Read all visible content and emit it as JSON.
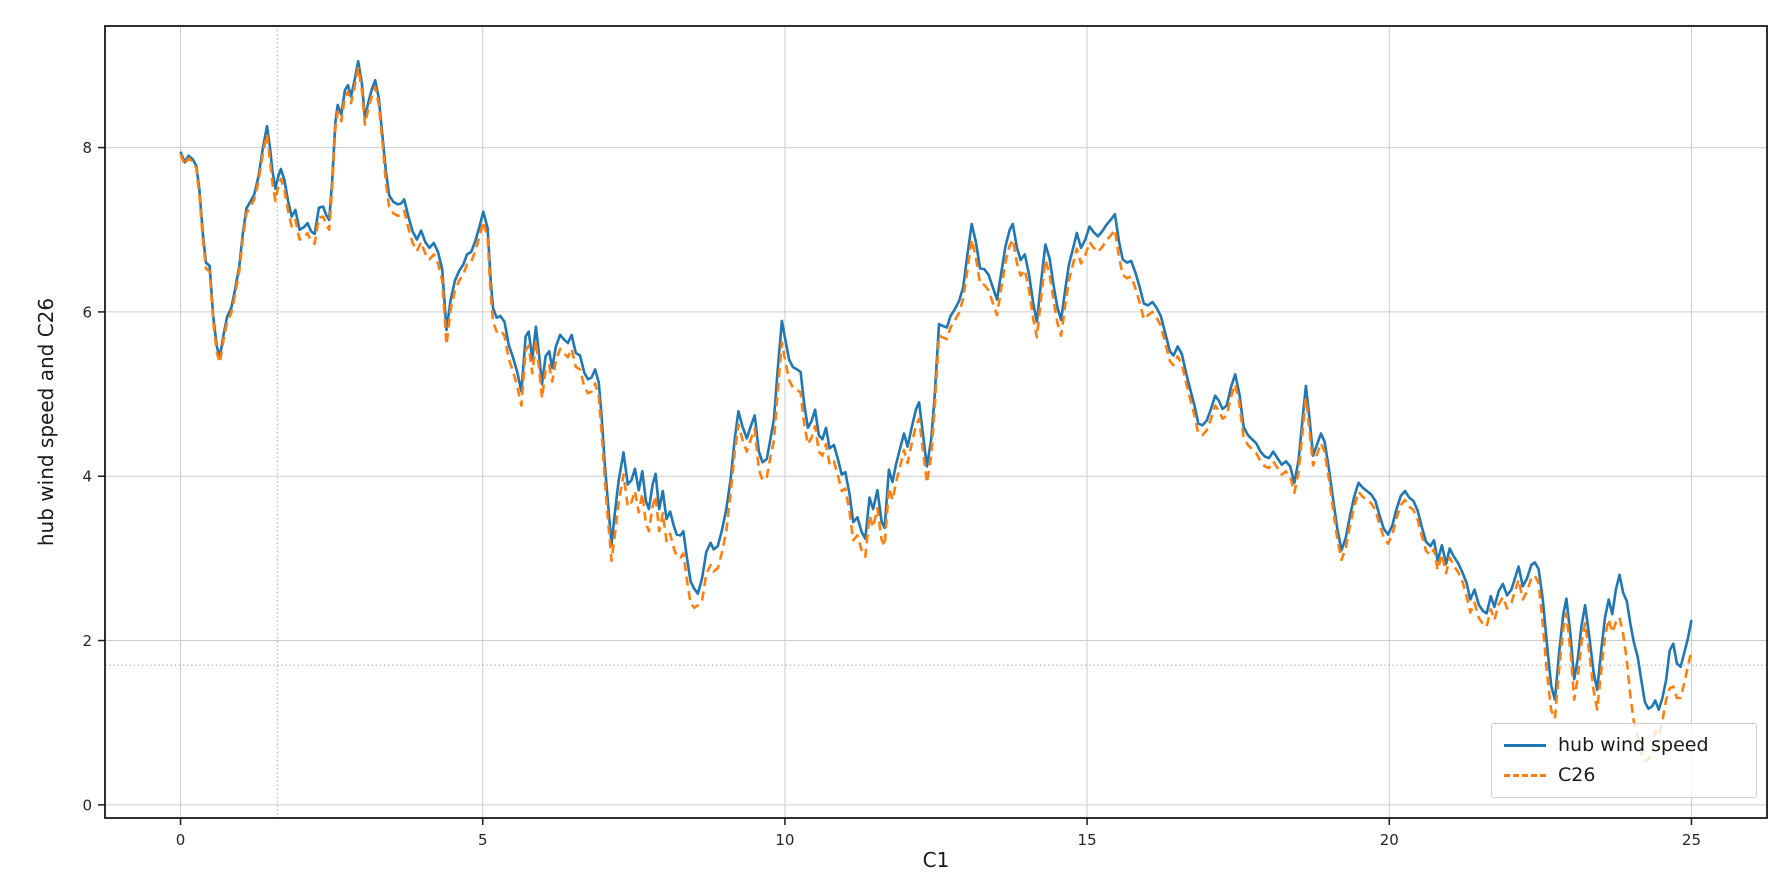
{
  "figure": {
    "background": "#ffffff"
  },
  "chart_data": {
    "type": "line",
    "title": "",
    "xlabel": "C1",
    "ylabel": "hub wind speed and C26",
    "xlim": [
      -1.25,
      26.25
    ],
    "ylim": [
      -0.16,
      9.48
    ],
    "x_ticks": [
      0,
      5,
      10,
      15,
      20,
      25
    ],
    "y_ticks": [
      0,
      2,
      4,
      6,
      8
    ],
    "grid": {
      "show_major": true,
      "major_color": "#cdcdcd"
    },
    "cursor_lines": {
      "x": 1.6,
      "y": 1.7,
      "style": "dotted",
      "color": "#a8a8a8"
    },
    "spine_color": "#1a1a1a",
    "tick_label_color": "#262626",
    "legend": {
      "position": "lower right"
    },
    "x": [
      0.0,
      0.07,
      0.13,
      0.2,
      0.26,
      0.31,
      0.37,
      0.42,
      0.48,
      0.54,
      0.6,
      0.65,
      0.71,
      0.77,
      0.84,
      0.9,
      0.97,
      1.03,
      1.09,
      1.16,
      1.22,
      1.29,
      1.36,
      1.43,
      1.48,
      1.52,
      1.57,
      1.62,
      1.66,
      1.72,
      1.78,
      1.84,
      1.9,
      1.97,
      2.04,
      2.1,
      2.16,
      2.22,
      2.29,
      2.36,
      2.41,
      2.46,
      2.51,
      2.56,
      2.6,
      2.66,
      2.72,
      2.77,
      2.82,
      2.88,
      2.94,
      3.0,
      3.05,
      3.11,
      3.17,
      3.22,
      3.28,
      3.34,
      3.4,
      3.45,
      3.52,
      3.59,
      3.65,
      3.7,
      3.77,
      3.84,
      3.91,
      3.98,
      4.05,
      4.12,
      4.19,
      4.26,
      4.33,
      4.4,
      4.47,
      4.54,
      4.61,
      4.68,
      4.74,
      4.81,
      4.88,
      4.95,
      5.01,
      5.08,
      5.13,
      5.17,
      5.23,
      5.29,
      5.36,
      5.43,
      5.5,
      5.57,
      5.64,
      5.71,
      5.76,
      5.82,
      5.88,
      5.93,
      5.98,
      6.04,
      6.1,
      6.15,
      6.21,
      6.28,
      6.35,
      6.41,
      6.47,
      6.54,
      6.61,
      6.68,
      6.74,
      6.8,
      6.86,
      6.92,
      6.97,
      7.02,
      7.07,
      7.13,
      7.19,
      7.25,
      7.33,
      7.4,
      7.46,
      7.52,
      7.58,
      7.64,
      7.7,
      7.75,
      7.81,
      7.86,
      7.92,
      7.98,
      8.04,
      8.1,
      8.16,
      8.21,
      8.27,
      8.32,
      8.38,
      8.44,
      8.5,
      8.56,
      8.63,
      8.7,
      8.77,
      8.82,
      8.89,
      8.96,
      9.03,
      9.1,
      9.17,
      9.23,
      9.3,
      9.37,
      9.44,
      9.5,
      9.57,
      9.63,
      9.7,
      9.76,
      9.82,
      9.88,
      9.95,
      10.01,
      10.07,
      10.13,
      10.2,
      10.26,
      10.32,
      10.38,
      10.44,
      10.5,
      10.56,
      10.62,
      10.68,
      10.74,
      10.81,
      10.88,
      10.94,
      11.0,
      11.07,
      11.13,
      11.2,
      11.27,
      11.33,
      11.4,
      11.46,
      11.53,
      11.6,
      11.65,
      11.72,
      11.78,
      11.84,
      11.9,
      11.97,
      12.03,
      12.1,
      12.17,
      12.22,
      12.29,
      12.35,
      12.42,
      12.48,
      12.55,
      12.61,
      12.68,
      12.74,
      12.81,
      12.88,
      12.95,
      13.02,
      13.09,
      13.16,
      13.23,
      13.3,
      13.37,
      13.44,
      13.51,
      13.58,
      13.65,
      13.72,
      13.77,
      13.84,
      13.9,
      13.97,
      14.04,
      14.11,
      14.17,
      14.24,
      14.31,
      14.38,
      14.45,
      14.51,
      14.57,
      14.64,
      14.7,
      14.77,
      14.83,
      14.9,
      14.97,
      15.04,
      15.11,
      15.18,
      15.25,
      15.32,
      15.39,
      15.46,
      15.53,
      15.59,
      15.66,
      15.73,
      15.8,
      15.87,
      15.94,
      16.01,
      16.08,
      16.15,
      16.22,
      16.3,
      16.37,
      16.43,
      16.5,
      16.57,
      16.64,
      16.71,
      16.78,
      16.84,
      16.91,
      16.98,
      17.05,
      17.12,
      17.18,
      17.24,
      17.31,
      17.38,
      17.45,
      17.52,
      17.59,
      17.66,
      17.73,
      17.8,
      17.87,
      17.94,
      18.01,
      18.08,
      18.15,
      18.22,
      18.29,
      18.36,
      18.43,
      18.5,
      18.56,
      18.62,
      18.68,
      18.74,
      18.81,
      18.87,
      18.93,
      19.0,
      19.07,
      19.14,
      19.21,
      19.28,
      19.35,
      19.42,
      19.49,
      19.56,
      19.63,
      19.7,
      19.77,
      19.84,
      19.91,
      19.98,
      20.05,
      20.12,
      20.19,
      20.26,
      20.33,
      20.4,
      20.47,
      20.54,
      20.61,
      20.68,
      20.74,
      20.8,
      20.87,
      20.94,
      21.0,
      21.07,
      21.14,
      21.21,
      21.28,
      21.34,
      21.41,
      21.48,
      21.55,
      21.61,
      21.68,
      21.74,
      21.81,
      21.88,
      21.95,
      22.02,
      22.08,
      22.14,
      22.21,
      22.28,
      22.35,
      22.41,
      22.47,
      22.54,
      22.61,
      22.68,
      22.74,
      22.81,
      22.88,
      22.93,
      23.0,
      23.06,
      23.12,
      23.18,
      23.24,
      23.31,
      23.38,
      23.44,
      23.51,
      23.57,
      23.63,
      23.69,
      23.75,
      23.81,
      23.87,
      23.93,
      23.99,
      24.05,
      24.11,
      24.17,
      24.23,
      24.29,
      24.35,
      24.4,
      24.46,
      24.52,
      24.58,
      24.64,
      24.7,
      24.76,
      24.82,
      24.88,
      24.94,
      25.0
    ],
    "series": [
      {
        "name": "hub wind speed",
        "color": "#1f77b4",
        "style": "solid",
        "width": 2.6,
        "values": [
          7.95,
          7.82,
          7.9,
          7.86,
          7.78,
          7.5,
          6.95,
          6.6,
          6.56,
          5.95,
          5.58,
          5.45,
          5.72,
          5.94,
          6.05,
          6.26,
          6.55,
          6.95,
          7.26,
          7.35,
          7.43,
          7.65,
          7.98,
          8.26,
          8.0,
          7.72,
          7.5,
          7.66,
          7.74,
          7.6,
          7.35,
          7.16,
          7.24,
          7.0,
          7.03,
          7.08,
          6.98,
          6.95,
          7.27,
          7.28,
          7.18,
          7.12,
          7.6,
          8.3,
          8.52,
          8.4,
          8.7,
          8.76,
          8.62,
          8.82,
          9.05,
          8.78,
          8.36,
          8.56,
          8.72,
          8.82,
          8.6,
          8.15,
          7.7,
          7.42,
          7.34,
          7.31,
          7.32,
          7.37,
          7.16,
          6.98,
          6.88,
          6.99,
          6.85,
          6.78,
          6.84,
          6.73,
          6.52,
          5.78,
          6.15,
          6.38,
          6.5,
          6.58,
          6.7,
          6.73,
          6.87,
          7.05,
          7.22,
          7.02,
          6.4,
          6.05,
          5.93,
          5.95,
          5.88,
          5.6,
          5.45,
          5.27,
          5.03,
          5.7,
          5.76,
          5.42,
          5.82,
          5.5,
          5.12,
          5.46,
          5.52,
          5.32,
          5.58,
          5.72,
          5.66,
          5.62,
          5.72,
          5.5,
          5.47,
          5.26,
          5.18,
          5.2,
          5.3,
          5.14,
          4.7,
          4.15,
          3.7,
          3.17,
          3.58,
          3.95,
          4.29,
          3.9,
          3.95,
          4.09,
          3.83,
          4.06,
          3.7,
          3.6,
          3.9,
          4.03,
          3.6,
          3.82,
          3.48,
          3.57,
          3.4,
          3.29,
          3.28,
          3.33,
          3.0,
          2.72,
          2.63,
          2.57,
          2.76,
          3.08,
          3.19,
          3.11,
          3.15,
          3.35,
          3.6,
          3.95,
          4.45,
          4.79,
          4.6,
          4.46,
          4.62,
          4.74,
          4.3,
          4.17,
          4.21,
          4.45,
          4.7,
          5.3,
          5.89,
          5.65,
          5.42,
          5.33,
          5.3,
          5.27,
          4.88,
          4.59,
          4.67,
          4.81,
          4.5,
          4.45,
          4.59,
          4.34,
          4.38,
          4.2,
          4.02,
          4.05,
          3.78,
          3.44,
          3.5,
          3.32,
          3.24,
          3.74,
          3.6,
          3.83,
          3.45,
          3.37,
          4.08,
          3.93,
          4.15,
          4.32,
          4.52,
          4.36,
          4.6,
          4.82,
          4.9,
          4.48,
          4.12,
          4.45,
          5.0,
          5.85,
          5.83,
          5.81,
          5.95,
          6.03,
          6.13,
          6.3,
          6.7,
          7.07,
          6.85,
          6.53,
          6.52,
          6.45,
          6.3,
          6.15,
          6.48,
          6.8,
          7.0,
          7.07,
          6.78,
          6.63,
          6.7,
          6.45,
          6.1,
          5.88,
          6.38,
          6.82,
          6.65,
          6.3,
          6.05,
          5.9,
          6.28,
          6.58,
          6.78,
          6.96,
          6.78,
          6.88,
          7.04,
          6.97,
          6.92,
          6.98,
          7.06,
          7.12,
          7.19,
          6.85,
          6.64,
          6.6,
          6.62,
          6.48,
          6.3,
          6.1,
          6.08,
          6.12,
          6.05,
          5.95,
          5.72,
          5.52,
          5.47,
          5.58,
          5.48,
          5.25,
          5.05,
          4.85,
          4.64,
          4.62,
          4.68,
          4.82,
          4.98,
          4.92,
          4.82,
          4.86,
          5.08,
          5.24,
          5.0,
          4.6,
          4.5,
          4.45,
          4.4,
          4.3,
          4.24,
          4.22,
          4.3,
          4.22,
          4.14,
          4.18,
          4.12,
          3.92,
          4.2,
          4.65,
          5.1,
          4.7,
          4.25,
          4.4,
          4.52,
          4.42,
          4.1,
          3.72,
          3.36,
          3.1,
          3.25,
          3.52,
          3.75,
          3.92,
          3.86,
          3.82,
          3.78,
          3.7,
          3.52,
          3.36,
          3.29,
          3.4,
          3.6,
          3.76,
          3.82,
          3.74,
          3.7,
          3.58,
          3.38,
          3.2,
          3.15,
          3.22,
          2.97,
          3.16,
          2.93,
          3.12,
          3.02,
          2.94,
          2.83,
          2.7,
          2.5,
          2.62,
          2.44,
          2.36,
          2.33,
          2.54,
          2.41,
          2.6,
          2.69,
          2.55,
          2.62,
          2.76,
          2.9,
          2.66,
          2.76,
          2.92,
          2.95,
          2.87,
          2.5,
          1.95,
          1.45,
          1.28,
          1.85,
          2.32,
          2.51,
          2.05,
          1.53,
          1.78,
          2.18,
          2.43,
          2.05,
          1.62,
          1.4,
          1.9,
          2.28,
          2.5,
          2.32,
          2.62,
          2.8,
          2.58,
          2.48,
          2.2,
          1.97,
          1.8,
          1.52,
          1.25,
          1.17,
          1.2,
          1.27,
          1.16,
          1.3,
          1.52,
          1.88,
          1.96,
          1.72,
          1.68,
          1.85,
          2.02,
          2.25
        ]
      },
      {
        "name": "C26",
        "color": "#ff7f0e",
        "style": "dashed",
        "width": 2.6,
        "values": [
          7.92,
          7.79,
          7.87,
          7.83,
          7.75,
          7.43,
          6.88,
          6.53,
          6.49,
          5.88,
          5.51,
          5.38,
          5.66,
          5.88,
          5.99,
          6.2,
          6.49,
          6.89,
          7.2,
          7.29,
          7.37,
          7.59,
          7.92,
          8.16,
          7.85,
          7.57,
          7.35,
          7.54,
          7.62,
          7.48,
          7.23,
          7.04,
          7.12,
          6.88,
          6.91,
          6.96,
          6.86,
          6.83,
          7.15,
          7.16,
          7.06,
          7.0,
          7.52,
          8.22,
          8.44,
          8.32,
          8.62,
          8.68,
          8.54,
          8.74,
          8.97,
          8.7,
          8.28,
          8.48,
          8.64,
          8.74,
          8.52,
          8.07,
          7.56,
          7.28,
          7.2,
          7.17,
          7.18,
          7.23,
          7.02,
          6.84,
          6.74,
          6.85,
          6.71,
          6.64,
          6.7,
          6.59,
          6.38,
          5.6,
          6.03,
          6.26,
          6.38,
          6.46,
          6.58,
          6.61,
          6.75,
          6.93,
          7.1,
          6.9,
          6.23,
          5.88,
          5.76,
          5.78,
          5.71,
          5.43,
          5.28,
          5.1,
          4.86,
          5.53,
          5.59,
          5.25,
          5.65,
          5.33,
          4.95,
          5.29,
          5.35,
          5.15,
          5.41,
          5.55,
          5.49,
          5.45,
          5.55,
          5.33,
          5.3,
          5.09,
          5.01,
          5.03,
          5.13,
          4.97,
          4.5,
          3.95,
          3.5,
          2.97,
          3.31,
          3.68,
          4.02,
          3.63,
          3.68,
          3.82,
          3.56,
          3.79,
          3.43,
          3.33,
          3.63,
          3.76,
          3.33,
          3.55,
          3.21,
          3.3,
          3.13,
          3.02,
          3.01,
          3.06,
          2.73,
          2.45,
          2.4,
          2.43,
          2.49,
          2.81,
          2.92,
          2.84,
          2.88,
          3.08,
          3.33,
          3.79,
          4.29,
          4.63,
          4.44,
          4.3,
          4.46,
          4.58,
          4.08,
          3.95,
          3.99,
          4.23,
          4.44,
          5.04,
          5.63,
          5.39,
          5.17,
          5.08,
          5.05,
          5.02,
          4.63,
          4.39,
          4.47,
          4.61,
          4.3,
          4.25,
          4.39,
          4.14,
          4.18,
          4.0,
          3.82,
          3.85,
          3.56,
          3.22,
          3.28,
          3.1,
          3.02,
          3.52,
          3.38,
          3.61,
          3.23,
          3.15,
          3.86,
          3.71,
          3.93,
          4.1,
          4.32,
          4.16,
          4.4,
          4.62,
          4.7,
          4.28,
          3.92,
          4.25,
          4.86,
          5.71,
          5.69,
          5.67,
          5.81,
          5.89,
          5.99,
          6.16,
          6.51,
          6.88,
          6.66,
          6.34,
          6.33,
          6.26,
          6.11,
          5.96,
          6.29,
          6.61,
          6.81,
          6.88,
          6.59,
          6.44,
          6.51,
          6.26,
          5.91,
          5.69,
          6.19,
          6.63,
          6.46,
          6.11,
          5.86,
          5.71,
          6.09,
          6.39,
          6.59,
          6.77,
          6.59,
          6.69,
          6.85,
          6.78,
          6.73,
          6.79,
          6.87,
          6.93,
          7.0,
          6.66,
          6.45,
          6.41,
          6.43,
          6.29,
          6.11,
          5.91,
          5.96,
          6.0,
          5.93,
          5.83,
          5.6,
          5.4,
          5.35,
          5.46,
          5.36,
          5.13,
          4.93,
          4.73,
          4.52,
          4.5,
          4.56,
          4.7,
          4.86,
          4.8,
          4.7,
          4.74,
          4.96,
          5.12,
          4.88,
          4.48,
          4.38,
          4.33,
          4.28,
          4.18,
          4.12,
          4.1,
          4.18,
          4.1,
          4.02,
          4.06,
          4.0,
          3.8,
          4.05,
          4.5,
          4.95,
          4.55,
          4.13,
          4.28,
          4.4,
          4.3,
          3.98,
          3.6,
          3.24,
          2.98,
          3.13,
          3.4,
          3.63,
          3.81,
          3.75,
          3.71,
          3.67,
          3.59,
          3.41,
          3.25,
          3.18,
          3.29,
          3.49,
          3.65,
          3.71,
          3.63,
          3.59,
          3.47,
          3.27,
          3.09,
          3.04,
          3.11,
          2.86,
          3.05,
          2.82,
          3.01,
          2.91,
          2.83,
          2.72,
          2.54,
          2.34,
          2.46,
          2.28,
          2.2,
          2.17,
          2.38,
          2.25,
          2.44,
          2.53,
          2.39,
          2.46,
          2.6,
          2.74,
          2.5,
          2.6,
          2.76,
          2.79,
          2.7,
          2.2,
          1.6,
          1.15,
          1.05,
          1.65,
          2.15,
          2.33,
          1.85,
          1.28,
          1.55,
          1.98,
          2.21,
          1.85,
          1.4,
          1.16,
          1.65,
          2.05,
          2.26,
          2.1,
          2.22,
          2.28,
          2.08,
          1.76,
          1.32,
          1.0,
          0.83,
          0.62,
          0.53,
          0.56,
          0.62,
          0.9,
          0.84,
          1.02,
          1.28,
          1.42,
          1.44,
          1.3,
          1.3,
          1.48,
          1.68,
          1.88
        ]
      }
    ]
  }
}
